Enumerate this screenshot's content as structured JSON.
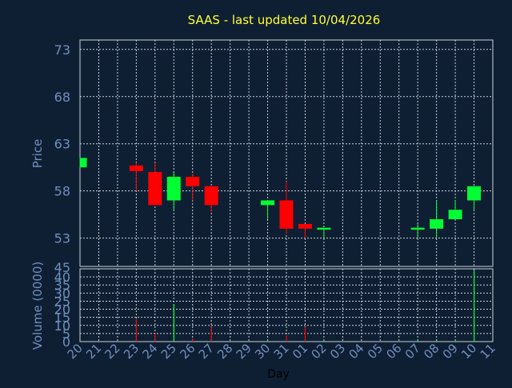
{
  "chart_data": {
    "type": "candlestick",
    "title": "SAAS - last updated 10/04/2026",
    "xlabel": "Day",
    "x_tick_labels": [
      "20",
      "21",
      "22",
      "23",
      "24",
      "25",
      "26",
      "27",
      "28",
      "29",
      "30",
      "31",
      "01",
      "02",
      "03",
      "04",
      "05",
      "06",
      "07",
      "08",
      "09",
      "10",
      "11"
    ],
    "price_panel": {
      "ylabel": "Price",
      "ylim": [
        50,
        74
      ],
      "y_ticks": [
        53,
        58,
        63,
        68,
        73
      ],
      "grid": true,
      "candles": [
        {
          "day": "20",
          "open": 60.5,
          "close": 61.5,
          "high": 61.5,
          "low": 60.5
        },
        {
          "day": "23",
          "open": 60.7,
          "close": 60.1,
          "high": 61.0,
          "low": 58.0
        },
        {
          "day": "24",
          "open": 60.0,
          "close": 56.5,
          "high": 61.0,
          "low": 56.5
        },
        {
          "day": "25",
          "open": 57.0,
          "close": 59.5,
          "high": 60.0,
          "low": 56.0
        },
        {
          "day": "26",
          "open": 59.5,
          "close": 58.5,
          "high": 59.8,
          "low": 57.0
        },
        {
          "day": "27",
          "open": 58.5,
          "close": 56.5,
          "high": 58.5,
          "low": 55.8
        },
        {
          "day": "30",
          "open": 56.5,
          "close": 57.0,
          "high": 57.0,
          "low": 55.0
        },
        {
          "day": "31",
          "open": 57.0,
          "close": 54.0,
          "high": 59.0,
          "low": 53.5
        },
        {
          "day": "01",
          "open": 54.5,
          "close": 54.0,
          "high": 54.5,
          "low": 53.0
        },
        {
          "day": "02",
          "open": 53.9,
          "close": 54.1,
          "high": 54.1,
          "low": 53.0
        },
        {
          "day": "07",
          "open": 53.9,
          "close": 54.1,
          "high": 54.5,
          "low": 53.0
        },
        {
          "day": "08",
          "open": 54.0,
          "close": 55.0,
          "high": 57.0,
          "low": 53.0
        },
        {
          "day": "09",
          "open": 55.0,
          "close": 56.0,
          "high": 57.0,
          "low": 55.0
        },
        {
          "day": "10",
          "open": 57.0,
          "close": 58.5,
          "high": 58.5,
          "low": 56.0
        }
      ]
    },
    "volume_panel": {
      "ylabel": "Volume (0000)",
      "ylim": [
        0,
        45
      ],
      "y_ticks": [
        0,
        5,
        10,
        15,
        20,
        25,
        30,
        35,
        40
      ],
      "top_label": "45",
      "bars": [
        {
          "day": "23",
          "value": 14,
          "direction": "down"
        },
        {
          "day": "24",
          "value": 5,
          "direction": "down"
        },
        {
          "day": "25",
          "value": 23,
          "direction": "up"
        },
        {
          "day": "26",
          "value": 2,
          "direction": "down"
        },
        {
          "day": "27",
          "value": 9,
          "direction": "down"
        },
        {
          "day": "30",
          "value": 1,
          "direction": "up"
        },
        {
          "day": "31",
          "value": 4,
          "direction": "down"
        },
        {
          "day": "01",
          "value": 9,
          "direction": "down"
        },
        {
          "day": "02",
          "value": 1,
          "direction": "up"
        },
        {
          "day": "07",
          "value": 1,
          "direction": "up"
        },
        {
          "day": "08",
          "value": 1,
          "direction": "up"
        },
        {
          "day": "09",
          "value": 1,
          "direction": "up"
        },
        {
          "day": "10",
          "value": 44,
          "direction": "up"
        }
      ]
    },
    "colors": {
      "background": "#0f1f33",
      "up": "#00ff33",
      "down": "#ff0000",
      "title": "#ffff33",
      "axis_text": "#6f8fbf",
      "grid": "#c8d0d8",
      "frame": "#c8d0d8"
    }
  }
}
